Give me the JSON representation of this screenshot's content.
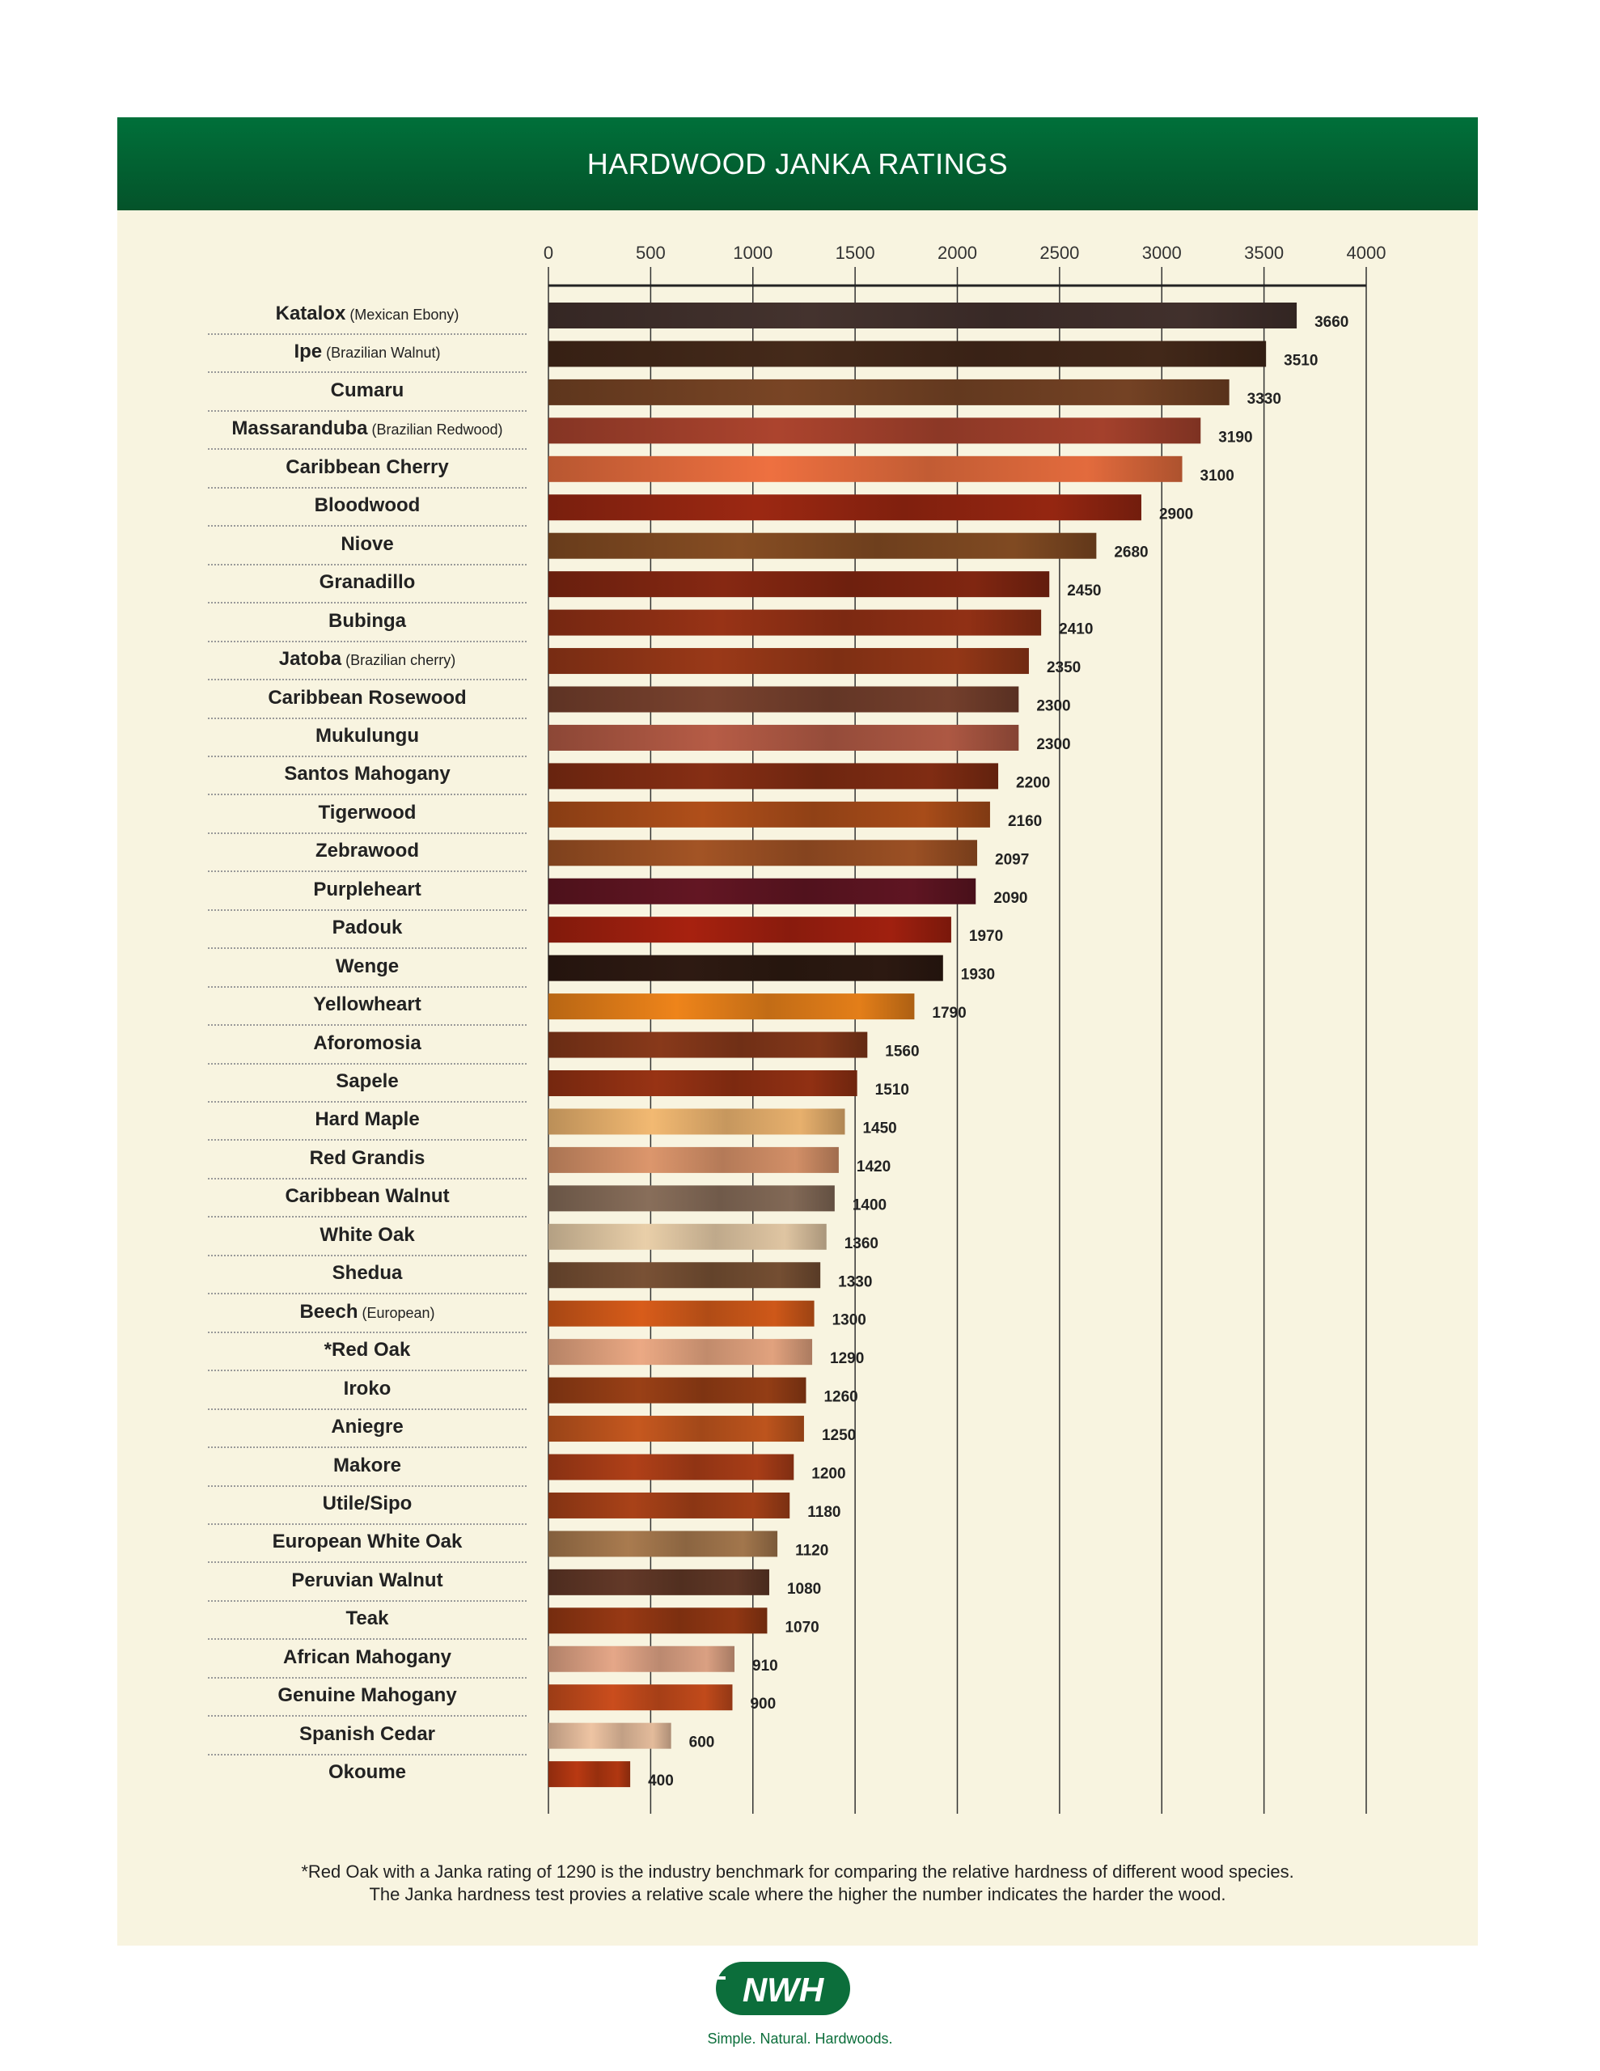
{
  "header": {
    "title": "HARDWOOD JANKA RATINGS"
  },
  "chart_data": {
    "type": "bar",
    "orientation": "horizontal",
    "title": "HARDWOOD JANKA RATINGS",
    "xlim": [
      0,
      4000
    ],
    "xticks": [
      0,
      500,
      1000,
      1500,
      2000,
      2500,
      3000,
      3500,
      4000
    ],
    "xtick_labels": [
      "0",
      "500",
      "1000",
      "1500",
      "2000",
      "2500",
      "3000",
      "3500",
      "4000"
    ],
    "grid": true,
    "bars": [
      {
        "name": "Katalox",
        "sub": "(Mexican Ebony)",
        "value": 3660,
        "label": "3660",
        "color": "#3e2e2a"
      },
      {
        "name": "Ipe",
        "sub": "(Brazilian Walnut)",
        "value": 3510,
        "label": "3510",
        "color": "#3f2618"
      },
      {
        "name": "Cumaru",
        "sub": "",
        "value": 3330,
        "label": "3330",
        "color": "#6e3f22"
      },
      {
        "name": "Massaranduba",
        "sub": "(Brazilian Redwood)",
        "value": 3190,
        "label": "3190",
        "color": "#9c3e2a"
      },
      {
        "name": "Caribbean Cherry",
        "sub": "",
        "value": 3100,
        "label": "3100",
        "color": "#d8663a"
      },
      {
        "name": "Bloodwood",
        "sub": "",
        "value": 2900,
        "label": "2900",
        "color": "#8e2410"
      },
      {
        "name": "Niove",
        "sub": "",
        "value": 2680,
        "label": "2680",
        "color": "#7a4620"
      },
      {
        "name": "Granadillo",
        "sub": "",
        "value": 2450,
        "label": "2450",
        "color": "#7a2410"
      },
      {
        "name": "Bubinga",
        "sub": "",
        "value": 2410,
        "label": "2410",
        "color": "#8a2e14"
      },
      {
        "name": "Jatoba",
        "sub": "(Brazilian cherry)",
        "value": 2350,
        "label": "2350",
        "color": "#8c3416"
      },
      {
        "name": "Caribbean Rosewood",
        "sub": "",
        "value": 2300,
        "label": "2300",
        "color": "#6e3c2a"
      },
      {
        "name": "Mukulungu",
        "sub": "",
        "value": 2300,
        "label": "2300",
        "color": "#a55440"
      },
      {
        "name": "Santos Mahogany",
        "sub": "",
        "value": 2200,
        "label": "2200",
        "color": "#7a2a12"
      },
      {
        "name": "Tigerwood",
        "sub": "",
        "value": 2160,
        "label": "2160",
        "color": "#a04818"
      },
      {
        "name": "Zebrawood",
        "sub": "",
        "value": 2097,
        "label": "2097",
        "color": "#944c22"
      },
      {
        "name": "Purpleheart",
        "sub": "",
        "value": 2090,
        "label": "2090",
        "color": "#5a1420"
      },
      {
        "name": "Padouk",
        "sub": "",
        "value": 1970,
        "label": "1970",
        "color": "#981e0e"
      },
      {
        "name": "Wenge",
        "sub": "",
        "value": 1930,
        "label": "1930",
        "color": "#2a1810"
      },
      {
        "name": "Yellowheart",
        "sub": "",
        "value": 1790,
        "label": "1790",
        "color": "#d87818"
      },
      {
        "name": "Aforomosia",
        "sub": "",
        "value": 1560,
        "label": "1560",
        "color": "#7c3418"
      },
      {
        "name": "Sapele",
        "sub": "",
        "value": 1510,
        "label": "1510",
        "color": "#8a2e12"
      },
      {
        "name": "Hard Maple",
        "sub": "",
        "value": 1450,
        "label": "1450",
        "color": "#dca868"
      },
      {
        "name": "Red Grandis",
        "sub": "",
        "value": 1420,
        "label": "1420",
        "color": "#c88862"
      },
      {
        "name": "Caribbean Walnut",
        "sub": "",
        "value": 1400,
        "label": "1400",
        "color": "#7c6452"
      },
      {
        "name": "White Oak",
        "sub": "",
        "value": 1360,
        "label": "1360",
        "color": "#d4bc9a"
      },
      {
        "name": "Shedua",
        "sub": "",
        "value": 1330,
        "label": "1330",
        "color": "#6e4a30"
      },
      {
        "name": "Beech",
        "sub": "(European)",
        "value": 1300,
        "label": "1300",
        "color": "#c45418"
      },
      {
        "name": "*Red Oak",
        "sub": "",
        "value": 1290,
        "label": "1290",
        "color": "#d69a78"
      },
      {
        "name": "Iroko",
        "sub": "",
        "value": 1260,
        "label": "1260",
        "color": "#8c3a14"
      },
      {
        "name": "Aniegre",
        "sub": "",
        "value": 1250,
        "label": "1250",
        "color": "#b4501c"
      },
      {
        "name": "Makore",
        "sub": "",
        "value": 1200,
        "label": "1200",
        "color": "#a03a16"
      },
      {
        "name": "Utile/Sipo",
        "sub": "",
        "value": 1180,
        "label": "1180",
        "color": "#9a3c16"
      },
      {
        "name": "European White Oak",
        "sub": "",
        "value": 1120,
        "label": "1120",
        "color": "#9a7048"
      },
      {
        "name": "Peruvian Walnut",
        "sub": "",
        "value": 1080,
        "label": "1080",
        "color": "#5a3424"
      },
      {
        "name": "Teak",
        "sub": "",
        "value": 1070,
        "label": "1070",
        "color": "#8a3412"
      },
      {
        "name": "African Mahogany",
        "sub": "",
        "value": 910,
        "label": "910",
        "color": "#d0987c"
      },
      {
        "name": "Genuine Mahogany",
        "sub": "",
        "value": 900,
        "label": "900",
        "color": "#b8461a"
      },
      {
        "name": "Spanish Cedar",
        "sub": "",
        "value": 600,
        "label": "600",
        "color": "#d8b294"
      },
      {
        "name": "Okoume",
        "sub": "",
        "value": 400,
        "label": "400",
        "color": "#a83410"
      }
    ]
  },
  "footnote": {
    "line1": "*Red Oak with a Janka rating of 1290 is the industry benchmark for comparing the relative hardness of different wood species.",
    "line2": "The Janka hardness test provies a relative scale where the higher the number indicates the harder the wood."
  },
  "brand": {
    "logo_text": "NWH",
    "tagline": "Simple. Natural. Hardwoods.",
    "color": "#0c6e3b"
  }
}
